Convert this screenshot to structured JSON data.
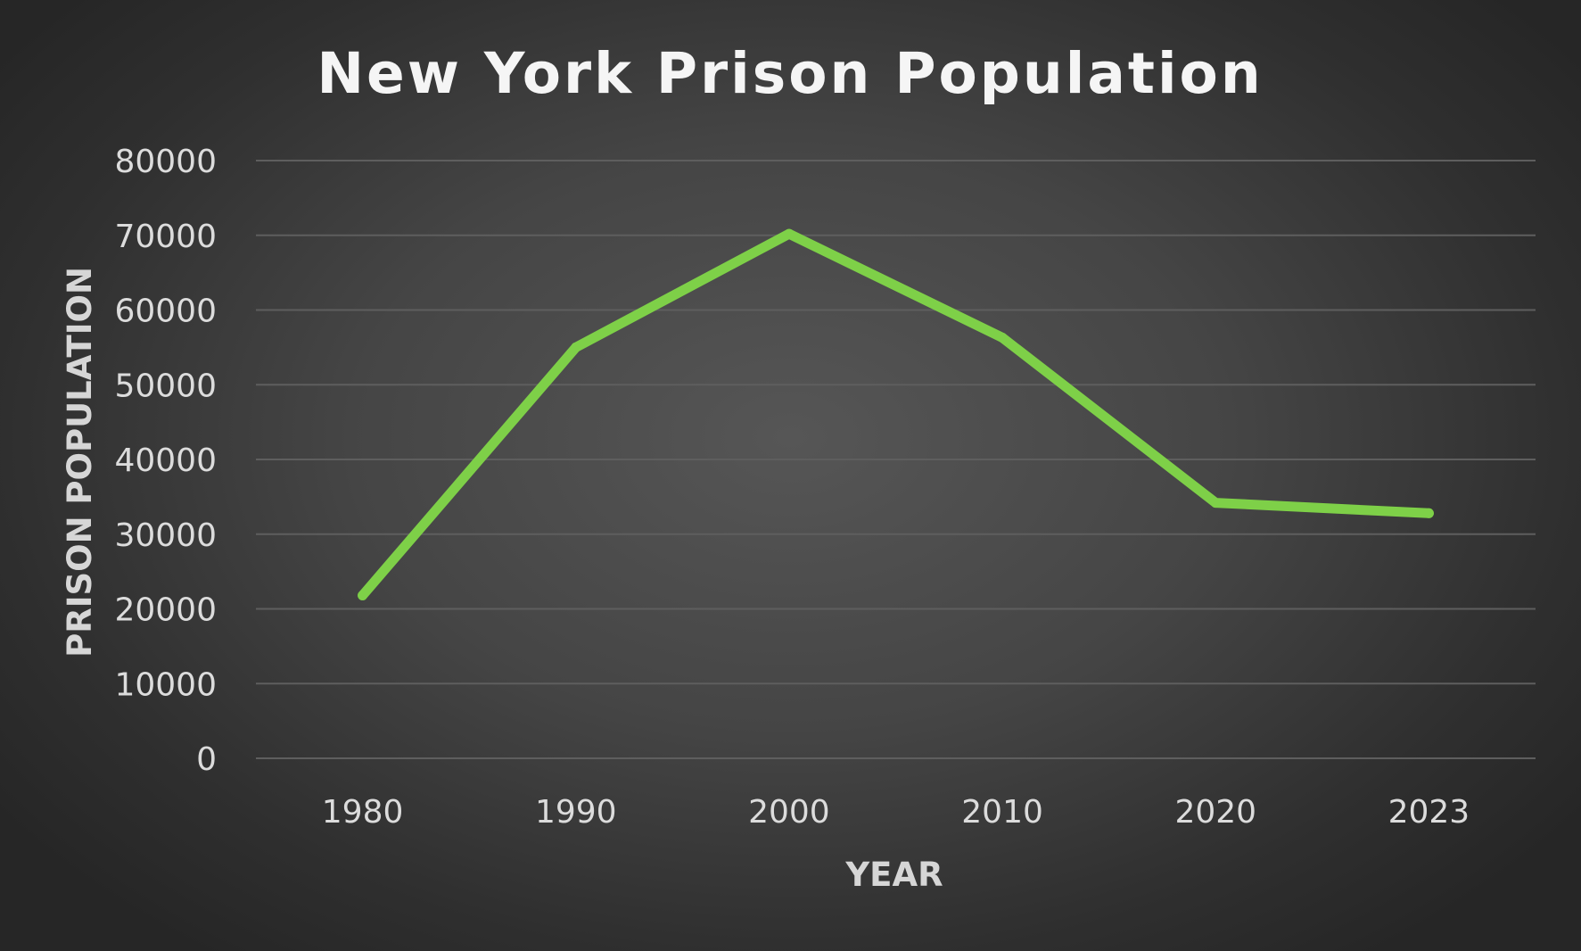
{
  "chart_data": {
    "type": "line",
    "title": "New York Prison Population",
    "xlabel": "YEAR",
    "ylabel": "PRISON POPULATION",
    "categories": [
      "1980",
      "1990",
      "2000",
      "2010",
      "2020",
      "2023"
    ],
    "series": [
      {
        "values": [
          21800,
          55000,
          70200,
          56300,
          34200,
          32800
        ],
        "color": "#7ed048"
      }
    ],
    "ylim": [
      0,
      80000
    ],
    "yticks": [
      "0",
      "10000",
      "20000",
      "30000",
      "40000",
      "50000",
      "60000",
      "70000",
      "80000"
    ],
    "grid": true,
    "legend": "none"
  }
}
